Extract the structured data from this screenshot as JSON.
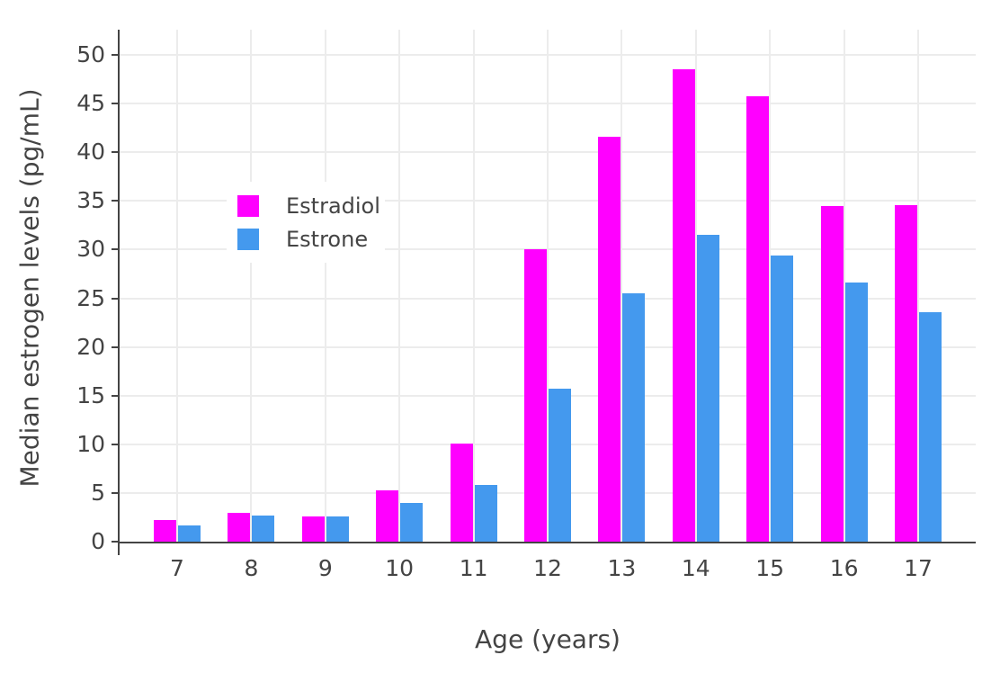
{
  "chart_data": {
    "type": "bar",
    "title": "",
    "xlabel": "Age (years)",
    "ylabel": "Median estrogen levels (pg/mL)",
    "categories": [
      "7",
      "8",
      "9",
      "10",
      "11",
      "12",
      "13",
      "14",
      "15",
      "16",
      "17"
    ],
    "series": [
      {
        "name": "Estradiol",
        "color": "#FF00FF",
        "values": [
          2.2,
          3.0,
          2.6,
          5.3,
          10.1,
          30.0,
          41.6,
          48.5,
          45.8,
          34.5,
          34.6
        ]
      },
      {
        "name": "Estrone",
        "color": "#4499EE",
        "values": [
          1.7,
          2.7,
          2.6,
          4.0,
          5.8,
          15.7,
          25.5,
          31.5,
          29.4,
          26.6,
          23.6
        ]
      }
    ],
    "y_ticks": [
      0,
      5,
      10,
      15,
      20,
      25,
      30,
      35,
      40,
      45,
      50
    ],
    "ylim": [
      0,
      52.6
    ],
    "grid": true,
    "legend_position": "upper-left-inside"
  },
  "colors": {
    "estradiol": "#FF00FF",
    "estrone": "#4499EE",
    "axis": "#444444",
    "gridline": "#ececec",
    "text": "#444444",
    "background": "#ffffff"
  }
}
